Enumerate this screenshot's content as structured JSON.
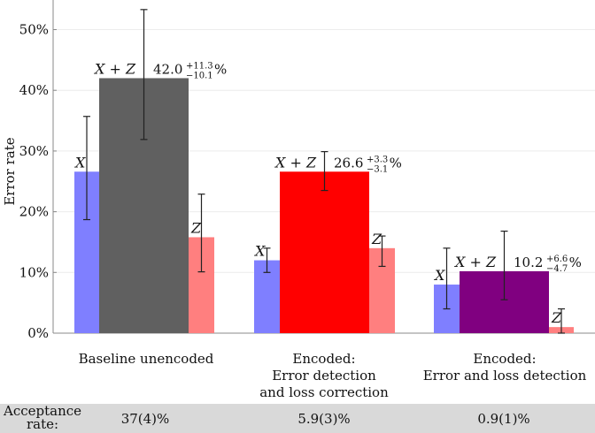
{
  "chart_data": {
    "type": "bar",
    "ylabel": "Error rate",
    "ylim": [
      0,
      54
    ],
    "yticks": [
      0,
      10,
      20,
      30,
      40,
      50
    ],
    "tick_suffix": "%",
    "grid": "horizontal",
    "series_names": [
      "X",
      "X + Z",
      "Z"
    ],
    "groups": [
      {
        "category": "Baseline unencoded",
        "bars": [
          {
            "series": "X",
            "value": 26.6,
            "err_low": 18.7,
            "err_high": 35.7,
            "color": "#7f7fff",
            "label": "X"
          },
          {
            "series": "X + Z",
            "value": 42.0,
            "err_low": 31.9,
            "err_high": 53.3,
            "color": "#606060",
            "label": "X + Z",
            "value_text": "42.0",
            "plus": "+11.3",
            "minus": "−10.1",
            "unit": "%"
          },
          {
            "series": "Z",
            "value": 15.8,
            "err_low": 10.1,
            "err_high": 22.9,
            "color": "#ff7f7f",
            "label": "Z"
          }
        ]
      },
      {
        "category": "Encoded:\nError detection\nand loss correction",
        "bars": [
          {
            "series": "X",
            "value": 12.0,
            "err_low": 10.0,
            "err_high": 14.0,
            "color": "#7f7fff",
            "label": "X"
          },
          {
            "series": "X + Z",
            "value": 26.6,
            "err_low": 23.5,
            "err_high": 29.9,
            "color": "#ff0000",
            "label": "X + Z",
            "value_text": "26.6",
            "plus": "+3.3",
            "minus": "−3.1",
            "unit": "%"
          },
          {
            "series": "Z",
            "value": 14.0,
            "err_low": 11.0,
            "err_high": 16.0,
            "color": "#ff7f7f",
            "label": "Z"
          }
        ]
      },
      {
        "category": "Encoded:\nError and loss detection",
        "bars": [
          {
            "series": "X",
            "value": 8.0,
            "err_low": 4.0,
            "err_high": 14.0,
            "color": "#7f7fff",
            "label": "X"
          },
          {
            "series": "X + Z",
            "value": 10.2,
            "err_low": 5.5,
            "err_high": 16.8,
            "color": "#800080",
            "label": "X + Z",
            "value_text": "10.2",
            "plus": "+6.6",
            "minus": "−4.7",
            "unit": "%"
          },
          {
            "series": "Z",
            "value": 1.0,
            "err_low": 0.0,
            "err_high": 4.0,
            "color": "#ff7f7f",
            "label": "Z"
          }
        ]
      }
    ]
  },
  "acceptance": {
    "title": "Acceptance\nrate:",
    "values": [
      "37(4)%",
      "5.9(3)%",
      "0.9(1)%"
    ]
  }
}
